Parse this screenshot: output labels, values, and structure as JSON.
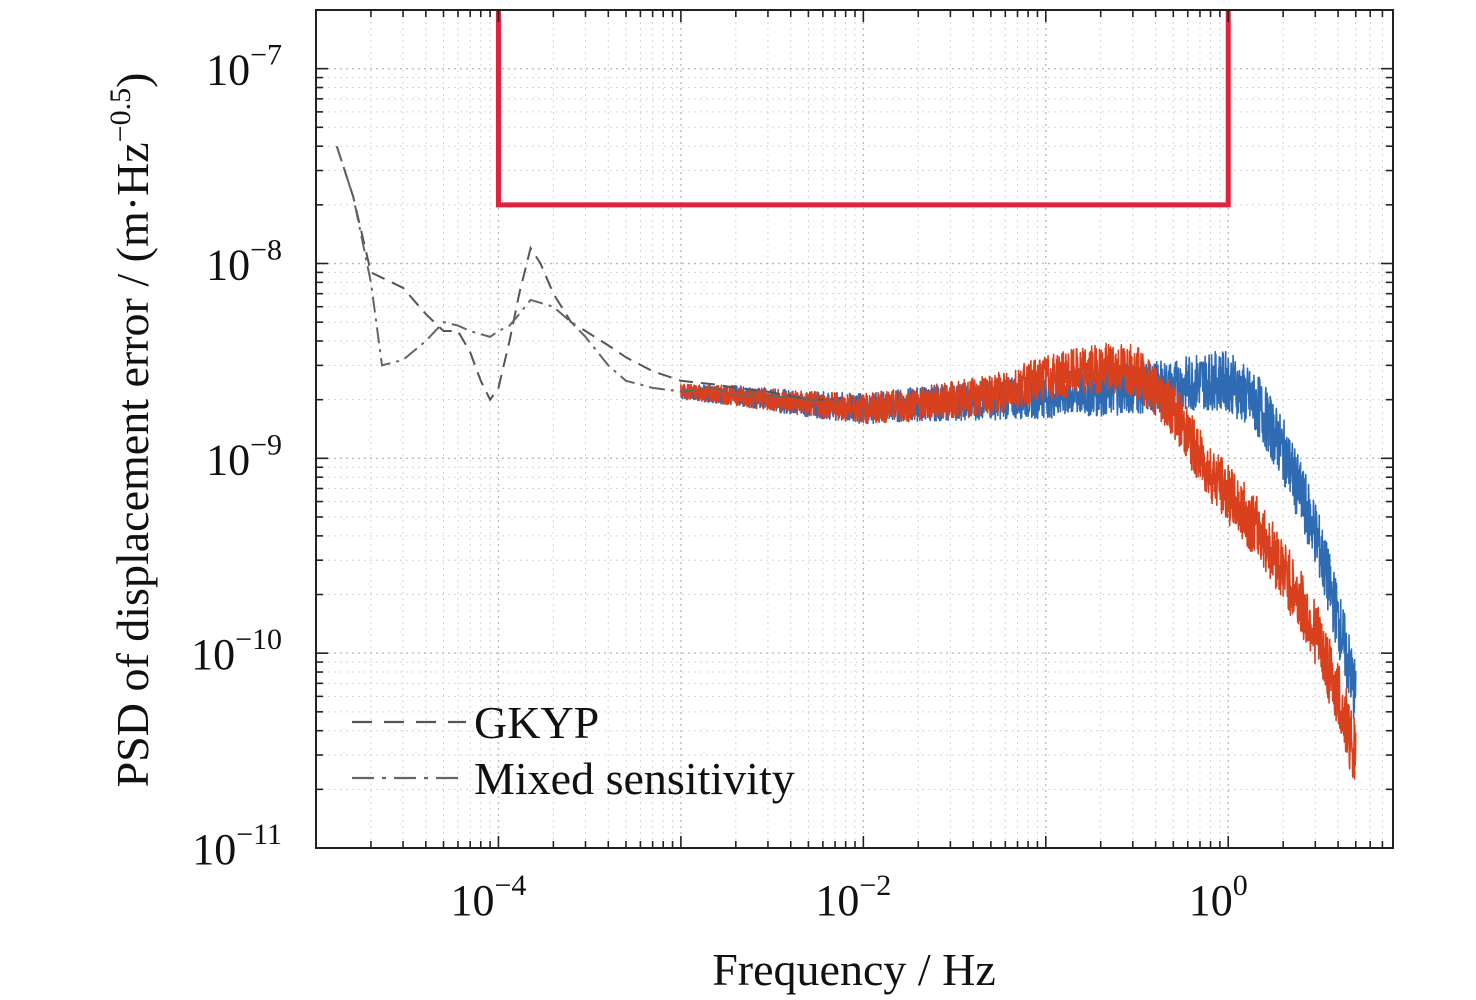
{
  "chart_data": {
    "type": "line",
    "title": "",
    "xlabel": "Frequency / Hz",
    "ylabel_main": "PSD of displacement error / (m·Hz",
    "ylabel_sup": "−0.5",
    "ylabel_close": ")",
    "x_scale": "log",
    "y_scale": "log",
    "xlim": [
      1e-05,
      8
    ],
    "ylim": [
      1e-11,
      2e-07
    ],
    "grid": true,
    "legend_position": "bottom-left",
    "x_ticks": [
      {
        "value": 0.0001,
        "base": "10",
        "exp": "−4"
      },
      {
        "value": 0.01,
        "base": "10",
        "exp": "−2"
      },
      {
        "value": 1,
        "base": "10",
        "exp": "0"
      }
    ],
    "y_ticks": [
      {
        "value": 1e-11,
        "base": "10",
        "exp": "−11"
      },
      {
        "value": 1e-10,
        "base": "10",
        "exp": "−10"
      },
      {
        "value": 1e-09,
        "base": "10",
        "exp": "−9"
      },
      {
        "value": 1e-08,
        "base": "10",
        "exp": "−8"
      },
      {
        "value": 1e-07,
        "base": "10",
        "exp": "−7"
      }
    ],
    "requirement_box": {
      "color": "#e0223f",
      "x_range": [
        0.0001,
        1
      ],
      "y_range": [
        2e-08,
        2e-07
      ]
    },
    "legend": [
      {
        "label": "GKYP",
        "style": "dash"
      },
      {
        "label": "Mixed sensitivity",
        "style": "dashdot"
      }
    ],
    "series": [
      {
        "name": "GKYP",
        "line_style": "dash",
        "color": "#555555",
        "x": [
          1.3e-05,
          1.6e-05,
          2e-05,
          3e-05,
          4e-05,
          5e-05,
          6e-05,
          7e-05,
          8e-05,
          9e-05,
          0.0001,
          0.000115,
          0.00013,
          0.00015,
          0.00017,
          0.0002,
          0.00025,
          0.0003,
          0.0004,
          0.0005,
          0.0007,
          0.001,
          0.0015,
          0.002,
          0.003,
          0.005,
          0.007
        ],
        "y": [
          4e-08,
          2.2e-08,
          9e-09,
          7.5e-09,
          5.5e-09,
          4.5e-09,
          4.5e-09,
          3.5e-09,
          2.5e-09,
          2e-09,
          2.3e-09,
          4e-09,
          7e-09,
          1.2e-08,
          1e-08,
          7e-09,
          5e-09,
          4.5e-09,
          3.8e-09,
          3.3e-09,
          2.8e-09,
          2.5e-09,
          2.4e-09,
          2.3e-09,
          2.2e-09,
          2e-09,
          2e-09
        ]
      },
      {
        "name": "Mixed sensitivity",
        "line_style": "dashdot",
        "color": "#666666",
        "x": [
          1.3e-05,
          1.6e-05,
          2e-05,
          2.3e-05,
          3e-05,
          4e-05,
          5e-05,
          6e-05,
          7e-05,
          9e-05,
          0.0001,
          0.000115,
          0.00013,
          0.00015,
          0.0002,
          0.00025,
          0.0003,
          0.0004,
          0.0005,
          0.0007,
          0.001,
          0.0015,
          0.002,
          0.003,
          0.005,
          0.007
        ],
        "y": [
          4e-08,
          2.2e-08,
          8e-09,
          3e-09,
          3.2e-09,
          4e-09,
          5e-09,
          4.8e-09,
          4.5e-09,
          4.2e-09,
          4.5e-09,
          4.8e-09,
          5.5e-09,
          6.5e-09,
          6e-09,
          5e-09,
          4.2e-09,
          3e-09,
          2.5e-09,
          2.3e-09,
          2.2e-09,
          2.3e-09,
          2.1e-09,
          2.1e-09,
          2e-09,
          2e-09
        ]
      },
      {
        "name": "",
        "color": "#d9411e",
        "noisy": true,
        "x": [
          0.001,
          0.002,
          0.005,
          0.01,
          0.02,
          0.05,
          0.1,
          0.2,
          0.3,
          0.5,
          0.7,
          1,
          1.5,
          2,
          3,
          4,
          5
        ],
        "y": [
          2.2e-09,
          2.1e-09,
          1.9e-09,
          1.8e-09,
          1.9e-09,
          2.1e-09,
          2.6e-09,
          2.9e-09,
          2.9e-09,
          1.8e-09,
          1e-09,
          6.5e-10,
          4.2e-10,
          2.7e-10,
          1.3e-10,
          6e-11,
          3e-11
        ]
      },
      {
        "name": "",
        "color": "#2f6bb3",
        "noisy": true,
        "x": [
          0.001,
          0.002,
          0.005,
          0.01,
          0.02,
          0.05,
          0.1,
          0.2,
          0.3,
          0.5,
          0.7,
          1,
          1.5,
          2,
          3,
          4,
          5
        ],
        "y": [
          2.2e-09,
          2.1e-09,
          1.9e-09,
          1.8e-09,
          1.9e-09,
          2e-09,
          2.1e-09,
          2.2e-09,
          2.3e-09,
          2.3e-09,
          2.5e-09,
          2.5e-09,
          1.8e-09,
          1.1e-09,
          4.2e-10,
          1.5e-10,
          6e-11
        ]
      }
    ]
  }
}
